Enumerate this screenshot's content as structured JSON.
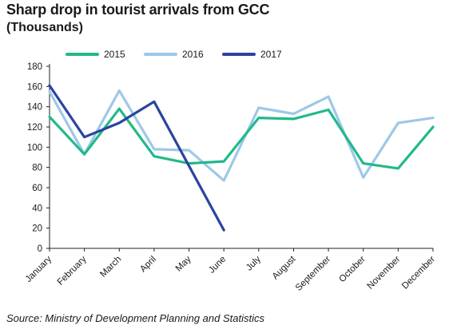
{
  "header": {
    "title": "Sharp drop in tourist arrivals from GCC",
    "subtitle": "(Thousands)"
  },
  "footer": {
    "source": "Source: Ministry of Development Planning and Statistics"
  },
  "colors": {
    "s2015": "#22b98a",
    "s2016": "#9ec8e8",
    "s2017": "#2b44a0",
    "axis": "#222222",
    "grid": "#e6e6e6"
  },
  "chart_data": {
    "type": "line",
    "categories": [
      "January",
      "February",
      "March",
      "April",
      "May",
      "June",
      "July",
      "August",
      "September",
      "October",
      "November",
      "December"
    ],
    "series": [
      {
        "name": "2015",
        "values": [
          130,
          93,
          138,
          91,
          84,
          86,
          129,
          128,
          137,
          84,
          79,
          120
        ]
      },
      {
        "name": "2016",
        "values": [
          155,
          93,
          156,
          98,
          97,
          67,
          139,
          133,
          150,
          70,
          124,
          129
        ]
      },
      {
        "name": "2017",
        "values": [
          161,
          110,
          124,
          145,
          null,
          18,
          null,
          null,
          null,
          null,
          null,
          null
        ]
      }
    ],
    "ylim": [
      0,
      180
    ],
    "yticks": [
      0,
      20,
      40,
      60,
      80,
      100,
      120,
      140,
      160,
      180
    ],
    "legend_position": "top",
    "grid": false
  }
}
